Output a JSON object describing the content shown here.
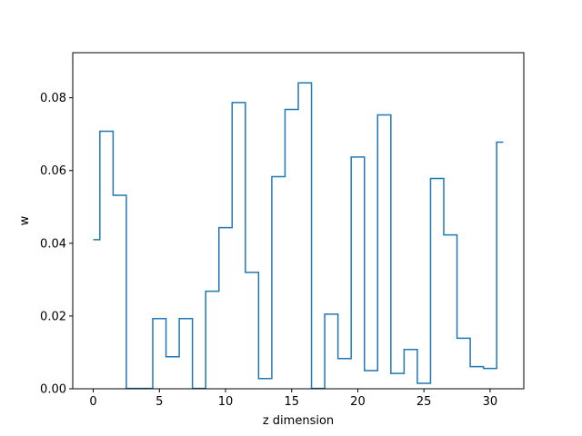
{
  "chart_data": {
    "type": "line",
    "drawstyle": "steps-mid",
    "title": "",
    "xlabel": "z dimension",
    "ylabel": "w",
    "xlim": [
      -1.55,
      32.55
    ],
    "ylim": [
      0,
      0.0924
    ],
    "xticks": [
      0,
      5,
      10,
      15,
      20,
      25,
      30
    ],
    "xtick_labels": [
      "0",
      "5",
      "10",
      "15",
      "20",
      "25",
      "30"
    ],
    "yticks": [
      0,
      0.02,
      0.04,
      0.06,
      0.08
    ],
    "ytick_labels": [
      "0.00",
      "0.02",
      "0.04",
      "0.06",
      "0.08"
    ],
    "grid": false,
    "legend": "none",
    "series": [
      {
        "color": "#1f77b4",
        "x": [
          0,
          1,
          2,
          3,
          4,
          5,
          6,
          7,
          8,
          9,
          10,
          11,
          12,
          13,
          14,
          15,
          16,
          17,
          18,
          19,
          20,
          21,
          22,
          23,
          24,
          25,
          26,
          27,
          28,
          29,
          30,
          31
        ],
        "values": [
          0.041,
          0.0708,
          0.0532,
          0.0001,
          0.0001,
          0.0193,
          0.0088,
          0.0193,
          0.0001,
          0.0268,
          0.0443,
          0.0787,
          0.032,
          0.0028,
          0.0583,
          0.0768,
          0.0841,
          0.0001,
          0.0205,
          0.0083,
          0.0637,
          0.005,
          0.0753,
          0.0042,
          0.0108,
          0.0015,
          0.0578,
          0.0423,
          0.0139,
          0.0061,
          0.0056,
          0.0678
        ]
      }
    ]
  }
}
